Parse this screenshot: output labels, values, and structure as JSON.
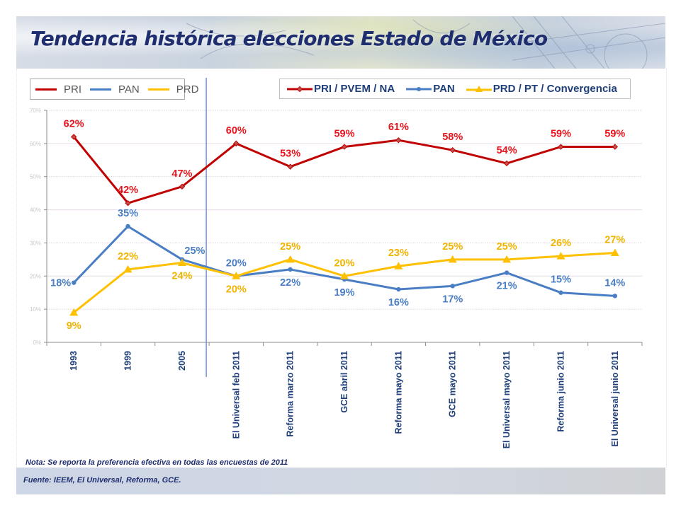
{
  "header": {
    "title": "Tendencia histórica elecciones Estado de México"
  },
  "legend_left": [
    {
      "label": "PRI",
      "color": "#c00000"
    },
    {
      "label": "PAN",
      "color": "#4a7ec4"
    },
    {
      "label": "PRD",
      "color": "#ffc000"
    }
  ],
  "legend_right": [
    {
      "label": "PRI / PVEM / NA",
      "color": "#c00000",
      "marker": "diamond"
    },
    {
      "label": "PAN",
      "color": "#4a7ec4",
      "marker": "circle"
    },
    {
      "label": "PRD / PT / Convergencia",
      "color": "#ffc000",
      "marker": "triangle"
    }
  ],
  "footer": {
    "nota": "Nota: Se reporta la preferencia efectiva en todas las encuestas de 2011",
    "fuente": "Fuente: IEEM, El Universal, Reforma, GCE."
  },
  "chart_data": {
    "type": "line",
    "title": "Tendencia histórica elecciones Estado de México",
    "xlabel": "",
    "ylabel": "",
    "ylim": [
      0,
      70
    ],
    "yticks": [
      "0%",
      "10%",
      "20%",
      "30%",
      "40%",
      "50%",
      "60%",
      "70%"
    ],
    "grid": true,
    "legend_placement": "top",
    "divider_after_category": "2005",
    "categories": [
      "1993",
      "1999",
      "2005",
      "El Universal feb 2011",
      "Reforma marzo 2011",
      "GCE abril 2011",
      "Reforma mayo 2011",
      "GCE mayo 2011",
      "El Universal mayo 2011",
      "Reforma junio 2011",
      "El Universal junio 2011"
    ],
    "series": [
      {
        "name": "PRI / PVEM / NA",
        "color": "#c00000",
        "label_color": "#e8141c",
        "marker": "diamond",
        "values": [
          62,
          42,
          47,
          60,
          53,
          59,
          61,
          58,
          54,
          59,
          59
        ],
        "labels": [
          "62%",
          "42%",
          "47%",
          "60%",
          "53%",
          "59%",
          "61%",
          "58%",
          "54%",
          "59%",
          "59%"
        ],
        "label_pos": [
          "above",
          "above",
          "above",
          "above",
          "above",
          "above",
          "above",
          "above",
          "above",
          "above",
          "above"
        ]
      },
      {
        "name": "PAN",
        "color": "#4a7ec4",
        "label_color": "#4a7ec4",
        "marker": "circle",
        "values": [
          18,
          35,
          25,
          20,
          22,
          19,
          16,
          17,
          21,
          15,
          14
        ],
        "labels": [
          "18%",
          "35%",
          "25%",
          "20%",
          "22%",
          "19%",
          "16%",
          "17%",
          "21%",
          "15%",
          "14%"
        ],
        "label_pos": [
          "left",
          "above",
          "above-right",
          "above",
          "below",
          "below",
          "below",
          "below",
          "below",
          "above",
          "above"
        ]
      },
      {
        "name": "PRD / PT / Convergencia",
        "color": "#ffc000",
        "label_color": "#f0b400",
        "marker": "triangle",
        "values": [
          9,
          22,
          24,
          20,
          25,
          20,
          23,
          25,
          25,
          26,
          27
        ],
        "labels": [
          "9%",
          "22%",
          "24%",
          "20%",
          "25%",
          "20%",
          "23%",
          "25%",
          "25%",
          "26%",
          "27%"
        ],
        "label_pos": [
          "below",
          "above",
          "below",
          "below",
          "above",
          "above",
          "above",
          "above",
          "above",
          "above",
          "above"
        ]
      }
    ]
  }
}
